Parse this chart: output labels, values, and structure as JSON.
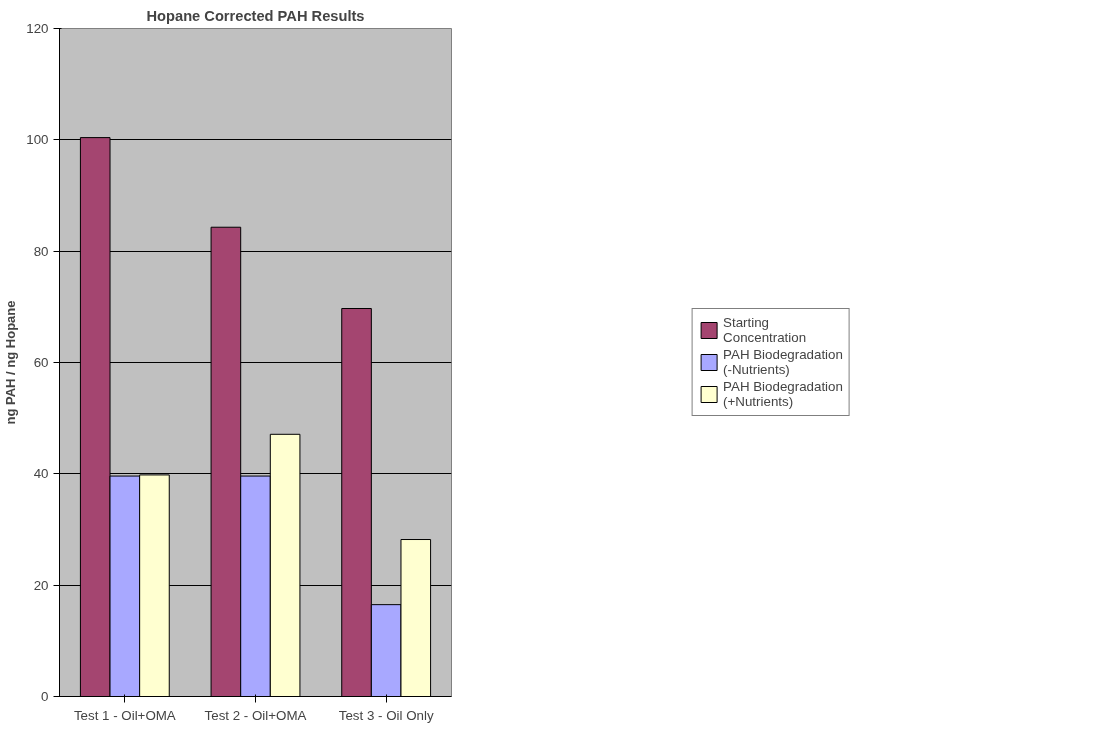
{
  "chart_data": {
    "type": "bar",
    "title": "Hopane Corrected PAH Results",
    "ylabel": "ng PAH / ng Hopane",
    "categories": [
      "Test 1 - Oil+OMA",
      "Test 2 - Oil+OMA",
      "Test 3 - Oil Only"
    ],
    "series": [
      {
        "name": "Starting Concentration",
        "color": "#a44570",
        "values": [
          100.4,
          84.3,
          69.7
        ]
      },
      {
        "name": "PAH Biodegradation (-Nutrients)",
        "color": "#a8a8ff",
        "values": [
          39.6,
          39.6,
          16.5
        ]
      },
      {
        "name": "PAH Biodegradation (+Nutrients)",
        "color": "#ffffd0",
        "values": [
          39.8,
          47.1,
          28.2
        ]
      }
    ],
    "ylim": [
      0,
      120
    ],
    "yticks": [
      0,
      20,
      40,
      60,
      80,
      100,
      120
    ],
    "grid": "y",
    "legend": "right"
  }
}
